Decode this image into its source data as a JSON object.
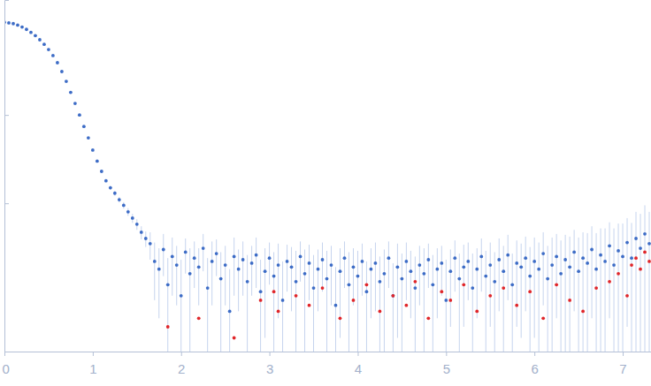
{
  "chart_data": {
    "type": "scatter",
    "log": "y",
    "tick_labels": "x",
    "xlim": [
      0,
      7.32
    ],
    "xticks": [
      0,
      1,
      2,
      3,
      4,
      5,
      6,
      7
    ],
    "ylim": [
      0.0021,
      20
    ],
    "yticks": [
      0.1,
      1
    ],
    "series": [
      {
        "color": "#3d6cc6",
        "marker": "circle",
        "x": [
          0,
          0.05,
          0.1,
          0.15,
          0.2,
          0.25,
          0.3,
          0.35,
          0.4,
          0.45,
          0.5,
          0.55,
          0.6,
          0.65,
          0.7,
          0.75,
          0.8,
          0.85,
          0.9,
          0.95,
          1,
          1.05,
          1.1,
          1.15,
          1.2,
          1.25,
          1.3,
          1.35,
          1.4,
          1.45,
          1.5,
          1.55,
          1.6,
          1.65,
          1.7,
          1.75,
          1.8,
          1.85,
          1.9,
          1.95,
          2,
          2.05,
          2.1,
          2.15,
          2.2,
          2.25,
          2.3,
          2.35,
          2.4,
          2.45,
          2.5,
          2.55,
          2.6,
          2.65,
          2.7,
          2.75,
          2.8,
          2.85,
          2.9,
          2.95,
          3,
          3.05,
          3.1,
          3.15,
          3.2,
          3.25,
          3.3,
          3.35,
          3.4,
          3.45,
          3.5,
          3.55,
          3.6,
          3.65,
          3.7,
          3.75,
          3.8,
          3.85,
          3.9,
          3.95,
          4,
          4.05,
          4.1,
          4.15,
          4.2,
          4.25,
          4.3,
          4.35,
          4.4,
          4.45,
          4.5,
          4.55,
          4.6,
          4.65,
          4.7,
          4.75,
          4.8,
          4.85,
          4.9,
          4.95,
          5,
          5.05,
          5.1,
          5.15,
          5.2,
          5.25,
          5.3,
          5.35,
          5.4,
          5.45,
          5.5,
          5.55,
          5.6,
          5.65,
          5.7,
          5.75,
          5.8,
          5.85,
          5.9,
          5.95,
          6,
          6.05,
          6.1,
          6.15,
          6.2,
          6.25,
          6.3,
          6.35,
          6.4,
          6.45,
          6.5,
          6.55,
          6.6,
          6.65,
          6.7,
          6.75,
          6.8,
          6.85,
          6.9,
          6.95,
          7,
          7.05,
          7.1,
          7.15,
          7.2,
          7.25,
          7.3
        ],
        "values": [
          11.2,
          11.0,
          10.8,
          10.4,
          9.9,
          9.3,
          8.6,
          7.9,
          7.1,
          6.3,
          5.5,
          4.7,
          3.9,
          3.1,
          2.4,
          1.8,
          1.35,
          1.0,
          0.74,
          0.55,
          0.4,
          0.3,
          0.23,
          0.18,
          0.15,
          0.13,
          0.11,
          0.095,
          0.08,
          0.068,
          0.058,
          0.047,
          0.04,
          0.035,
          0.022,
          0.018,
          0.03,
          0.012,
          0.025,
          0.02,
          0.009,
          0.028,
          0.016,
          0.024,
          0.019,
          0.031,
          0.011,
          0.022,
          0.027,
          0.014,
          0.02,
          0.006,
          0.025,
          0.018,
          0.023,
          0.013,
          0.021,
          0.026,
          0.01,
          0.017,
          0.024,
          0.015,
          0.02,
          0.008,
          0.022,
          0.019,
          0.013,
          0.025,
          0.016,
          0.021,
          0.011,
          0.018,
          0.023,
          0.014,
          0.02,
          0.007,
          0.017,
          0.024,
          0.012,
          0.019,
          0.015,
          0.022,
          0.01,
          0.018,
          0.021,
          0.013,
          0.016,
          0.024,
          0.009,
          0.019,
          0.014,
          0.022,
          0.017,
          0.011,
          0.02,
          0.016,
          0.023,
          0.012,
          0.018,
          0.021,
          0.008,
          0.017,
          0.024,
          0.014,
          0.019,
          0.022,
          0.011,
          0.018,
          0.025,
          0.015,
          0.02,
          0.013,
          0.023,
          0.017,
          0.026,
          0.012,
          0.021,
          0.019,
          0.024,
          0.015,
          0.022,
          0.018,
          0.027,
          0.014,
          0.02,
          0.025,
          0.016,
          0.023,
          0.019,
          0.028,
          0.017,
          0.024,
          0.021,
          0.03,
          0.018,
          0.026,
          0.022,
          0.033,
          0.02,
          0.029,
          0.025,
          0.036,
          0.024,
          0.04,
          0.031,
          0.045,
          0.035
        ],
        "errors": [
          0.08,
          0.05,
          0.04,
          0.04,
          0.04,
          0.04,
          0.03,
          0.03,
          0.03,
          0.03,
          0.03,
          0.03,
          0.02,
          0.02,
          0.02,
          0.02,
          0.02,
          0.015,
          0.012,
          0.01,
          0.01,
          0.008,
          0.008,
          0.008,
          0.008,
          0.008,
          0.008,
          0.008,
          0.008,
          0.008,
          0.008,
          0.008,
          0.008,
          0.012,
          0.014,
          0.013,
          0.015,
          0.012,
          0.016,
          0.013,
          0.014,
          0.012,
          0.015,
          0.013,
          0.012,
          0.014,
          0.013,
          0.015,
          0.012,
          0.014,
          0.013,
          0.012,
          0.016,
          0.012,
          0.014,
          0.013,
          0.012,
          0.015,
          0.013,
          0.014,
          0.012,
          0.013,
          0.015,
          0.014,
          0.012,
          0.013,
          0.016,
          0.012,
          0.014,
          0.013,
          0.015,
          0.012,
          0.013,
          0.015,
          0.013,
          0.012,
          0.014,
          0.013,
          0.016,
          0.012,
          0.014,
          0.013,
          0.012,
          0.013,
          0.015,
          0.012,
          0.014,
          0.013,
          0.012,
          0.016,
          0.013,
          0.014,
          0.012,
          0.014,
          0.013,
          0.015,
          0.012,
          0.014,
          0.013,
          0.012,
          0.015,
          0.013,
          0.014,
          0.013,
          0.015,
          0.014,
          0.016,
          0.013,
          0.015,
          0.014,
          0.016,
          0.015,
          0.017,
          0.016,
          0.018,
          0.015,
          0.017,
          0.016,
          0.018,
          0.017,
          0.019,
          0.018,
          0.02,
          0.019,
          0.021,
          0.02,
          0.022,
          0.021,
          0.023,
          0.022,
          0.024,
          0.023,
          0.025,
          0.025,
          0.028,
          0.026,
          0.03,
          0.028,
          0.032,
          0.03,
          0.034,
          0.032,
          0.036,
          0.04,
          0.045,
          0.05,
          0.045
        ]
      },
      {
        "color": "#e0262a",
        "marker": "circle",
        "x": [
          1.85,
          2.2,
          2.6,
          2.9,
          3.05,
          3.1,
          3.3,
          3.45,
          3.6,
          3.8,
          3.95,
          4.1,
          4.25,
          4.4,
          4.55,
          4.65,
          4.8,
          4.95,
          5.05,
          5.2,
          5.35,
          5.5,
          5.65,
          5.8,
          5.95,
          6.1,
          6.25,
          6.4,
          6.55,
          6.7,
          6.85,
          6.95,
          7.05,
          7.1,
          7.15,
          7.2,
          7.25,
          7.3
        ],
        "values": [
          0.004,
          0.005,
          0.003,
          0.008,
          0.01,
          0.006,
          0.009,
          0.007,
          0.011,
          0.005,
          0.008,
          0.012,
          0.006,
          0.009,
          0.007,
          0.013,
          0.005,
          0.01,
          0.008,
          0.012,
          0.006,
          0.009,
          0.011,
          0.007,
          0.01,
          0.005,
          0.012,
          0.008,
          0.006,
          0.011,
          0.013,
          0.016,
          0.009,
          0.02,
          0.024,
          0.018,
          0.028,
          0.022
        ]
      }
    ]
  }
}
